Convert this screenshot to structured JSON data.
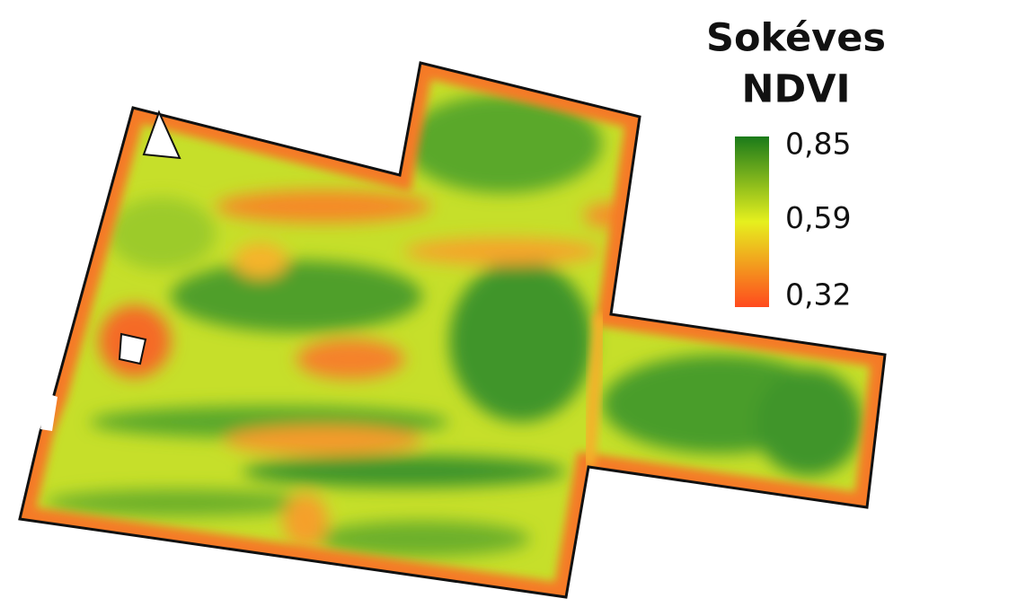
{
  "legend": {
    "title": [
      "Sokéves",
      "NDVI"
    ],
    "ticks": [
      {
        "value": 0.85,
        "label": "0,85"
      },
      {
        "value": 0.59,
        "label": "0,59"
      },
      {
        "value": 0.32,
        "label": "0,32"
      }
    ],
    "colors": [
      "#1a7a1a",
      "#e6f01e",
      "#ff4a1e"
    ]
  }
}
